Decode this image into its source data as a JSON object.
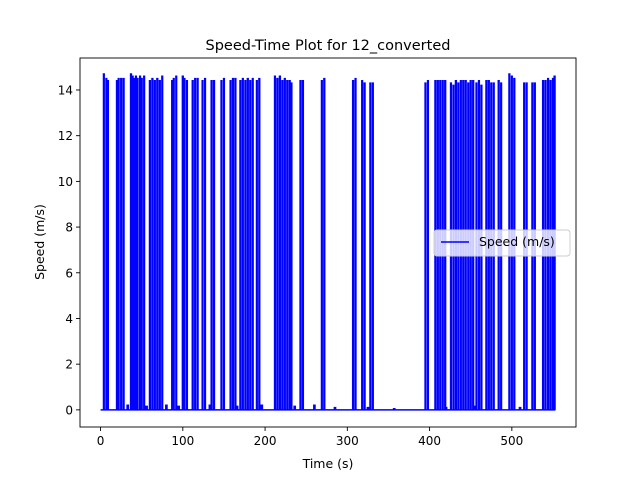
{
  "chart_data": {
    "type": "line",
    "title": "Speed-Time Plot for 12_converted",
    "xlabel": "Time (s)",
    "ylabel": "Speed (m/s)",
    "xlim": [
      -25,
      578
    ],
    "ylim": [
      -0.75,
      15.4
    ],
    "xticks": [
      0,
      100,
      200,
      300,
      400,
      500
    ],
    "yticks": [
      0,
      2,
      4,
      6,
      8,
      10,
      12,
      14
    ],
    "grid": false,
    "legend_position": "center-right",
    "series": [
      {
        "name": "Speed (m/s)",
        "color": "#0000ff",
        "spikes": [
          [
            4,
            14.7
          ],
          [
            7,
            14.5
          ],
          [
            9,
            14.4
          ],
          [
            20,
            14.4
          ],
          [
            22,
            14.5
          ],
          [
            25,
            14.5
          ],
          [
            28,
            14.5
          ],
          [
            37,
            14.7
          ],
          [
            39,
            14.6
          ],
          [
            41,
            14.5
          ],
          [
            43,
            14.6
          ],
          [
            45,
            14.5
          ],
          [
            48,
            14.6
          ],
          [
            50,
            14.5
          ],
          [
            53,
            14.6
          ],
          [
            60,
            14.4
          ],
          [
            63,
            14.5
          ],
          [
            66,
            14.4
          ],
          [
            69,
            14.5
          ],
          [
            72,
            14.4
          ],
          [
            75,
            14.6
          ],
          [
            87,
            14.4
          ],
          [
            89,
            14.5
          ],
          [
            92,
            14.6
          ],
          [
            100,
            14.6
          ],
          [
            102,
            14.5
          ],
          [
            105,
            14.4
          ],
          [
            112,
            14.4
          ],
          [
            115,
            14.5
          ],
          [
            118,
            14.5
          ],
          [
            124,
            14.4
          ],
          [
            127,
            14.5
          ],
          [
            135,
            14.4
          ],
          [
            138,
            14.4
          ],
          [
            147,
            14.4
          ],
          [
            150,
            14.5
          ],
          [
            158,
            14.4
          ],
          [
            161,
            14.5
          ],
          [
            164,
            14.5
          ],
          [
            170,
            14.4
          ],
          [
            173,
            14.5
          ],
          [
            176,
            14.4
          ],
          [
            179,
            14.5
          ],
          [
            182,
            14.4
          ],
          [
            185,
            14.5
          ],
          [
            190,
            14.4
          ],
          [
            193,
            14.5
          ],
          [
            212,
            14.6
          ],
          [
            215,
            14.5
          ],
          [
            218,
            14.6
          ],
          [
            221,
            14.4
          ],
          [
            224,
            14.5
          ],
          [
            227,
            14.4
          ],
          [
            230,
            14.4
          ],
          [
            232,
            14.3
          ],
          [
            243,
            14.4
          ],
          [
            246,
            14.4
          ],
          [
            269,
            14.4
          ],
          [
            272,
            14.5
          ],
          [
            307,
            14.4
          ],
          [
            310,
            14.5
          ],
          [
            318,
            14.4
          ],
          [
            321,
            14.3
          ],
          [
            328,
            14.3
          ],
          [
            331,
            14.3
          ],
          [
            395,
            14.3
          ],
          [
            398,
            14.4
          ],
          [
            407,
            14.4
          ],
          [
            410,
            14.4
          ],
          [
            413,
            14.4
          ],
          [
            416,
            14.4
          ],
          [
            419,
            14.4
          ],
          [
            426,
            14.3
          ],
          [
            429,
            14.2
          ],
          [
            432,
            14.4
          ],
          [
            435,
            14.3
          ],
          [
            438,
            14.4
          ],
          [
            441,
            14.4
          ],
          [
            444,
            14.4
          ],
          [
            447,
            14.3
          ],
          [
            450,
            14.4
          ],
          [
            453,
            14.4
          ],
          [
            457,
            14.3
          ],
          [
            460,
            14.4
          ],
          [
            463,
            14.2
          ],
          [
            469,
            14.4
          ],
          [
            472,
            14.4
          ],
          [
            475,
            14.3
          ],
          [
            478,
            14.3
          ],
          [
            484,
            14.4
          ],
          [
            487,
            14.3
          ],
          [
            497,
            14.7
          ],
          [
            500,
            14.6
          ],
          [
            503,
            14.5
          ],
          [
            515,
            14.3
          ],
          [
            518,
            14.3
          ],
          [
            525,
            14.3
          ],
          [
            528,
            14.3
          ],
          [
            538,
            14.4
          ],
          [
            541,
            14.4
          ],
          [
            544,
            14.5
          ],
          [
            547,
            14.4
          ],
          [
            550,
            14.5
          ],
          [
            552,
            14.6
          ]
        ],
        "small_bumps": [
          [
            33,
            0.2
          ],
          [
            56,
            0.15
          ],
          [
            80,
            0.2
          ],
          [
            95,
            0.15
          ],
          [
            133,
            0.2
          ],
          [
            166,
            0.15
          ],
          [
            196,
            0.2
          ],
          [
            236,
            0.15
          ],
          [
            260,
            0.2
          ],
          [
            285,
            0.1
          ],
          [
            325,
            0.1
          ],
          [
            357,
            0.05
          ],
          [
            420,
            0.1
          ],
          [
            455,
            0.15
          ],
          [
            510,
            0.1
          ]
        ],
        "x_start": 0,
        "x_end": 553
      }
    ]
  }
}
